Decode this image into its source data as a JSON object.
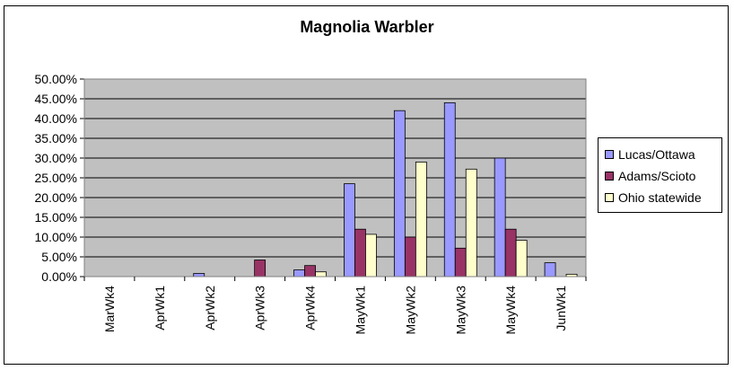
{
  "chart_data": {
    "type": "bar",
    "title": "Magnolia Warbler",
    "xlabel": "",
    "ylabel": "",
    "ylim": [
      0,
      0.5
    ],
    "y_ticks": [
      "50.00%",
      "45.00%",
      "40.00%",
      "35.00%",
      "30.00%",
      "25.00%",
      "20.00%",
      "15.00%",
      "10.00%",
      "5.00%",
      "0.00%"
    ],
    "y_tick_values": [
      0.5,
      0.45,
      0.4,
      0.35,
      0.3,
      0.25,
      0.2,
      0.15,
      0.1,
      0.05,
      0.0
    ],
    "categories": [
      "MarWk4",
      "AprWk1",
      "AprWk2",
      "AprWk3",
      "AprWk4",
      "MayWk1",
      "MayWk2",
      "MayWk3",
      "MayWk4",
      "JunWk1"
    ],
    "series": [
      {
        "name": "Lucas/Ottawa",
        "color": "#9999ff",
        "values": [
          0,
          0,
          0.008,
          0,
          0.017,
          0.235,
          0.42,
          0.44,
          0.3,
          0.035
        ]
      },
      {
        "name": "Adams/Scioto",
        "color": "#993366",
        "values": [
          0,
          0,
          0,
          0.042,
          0.028,
          0.12,
          0.1,
          0.072,
          0.12,
          0
        ]
      },
      {
        "name": "Ohio statewide",
        "color": "#ffffcc",
        "values": [
          0,
          0,
          0,
          0,
          0.012,
          0.107,
          0.29,
          0.272,
          0.092,
          0.006
        ]
      }
    ],
    "grid": true,
    "plot_background": "#c0c0c0",
    "legend_position": "right"
  }
}
